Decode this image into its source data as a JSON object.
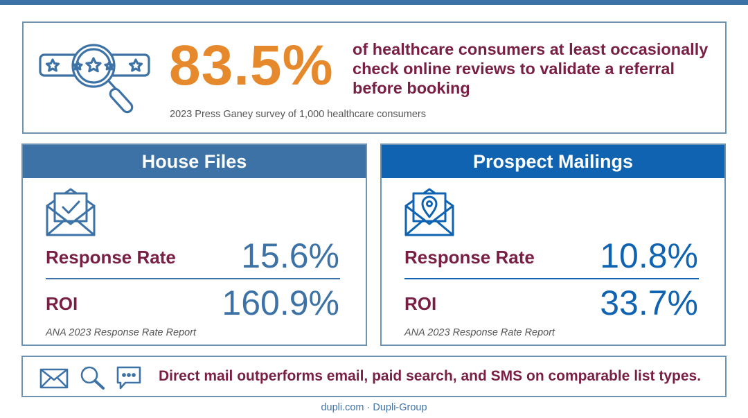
{
  "headline": {
    "stat": "83.5%",
    "description": "of healthcare consumers at least occasionally check online reviews to validate a referral before booking",
    "source": "2023 Press Ganey survey of 1,000 healthcare consumers"
  },
  "cards": [
    {
      "title": "House Files",
      "icon": "envelope-check-icon",
      "response_label": "Response Rate",
      "response_value": "15.6%",
      "roi_label": "ROI",
      "roi_value": "160.9%",
      "source": "ANA 2023 Response Rate Report"
    },
    {
      "title": "Prospect Mailings",
      "icon": "envelope-location-icon",
      "response_label": "Response Rate",
      "response_value": "10.8%",
      "roi_label": "ROI",
      "roi_value": "33.7%",
      "source": "ANA 2023 Response Rate Report"
    }
  ],
  "bottom": {
    "icons": [
      "mail-icon",
      "search-icon",
      "chat-icon"
    ],
    "text": "Direct mail outperforms email, paid search, and SMS on comparable list types."
  },
  "footer": "dupli.com · Dupli-Group",
  "colors": {
    "accent_orange": "#e5892c",
    "maroon": "#7a1f44",
    "blue": "#3d72a6",
    "blue_bright": "#0f63b1"
  }
}
